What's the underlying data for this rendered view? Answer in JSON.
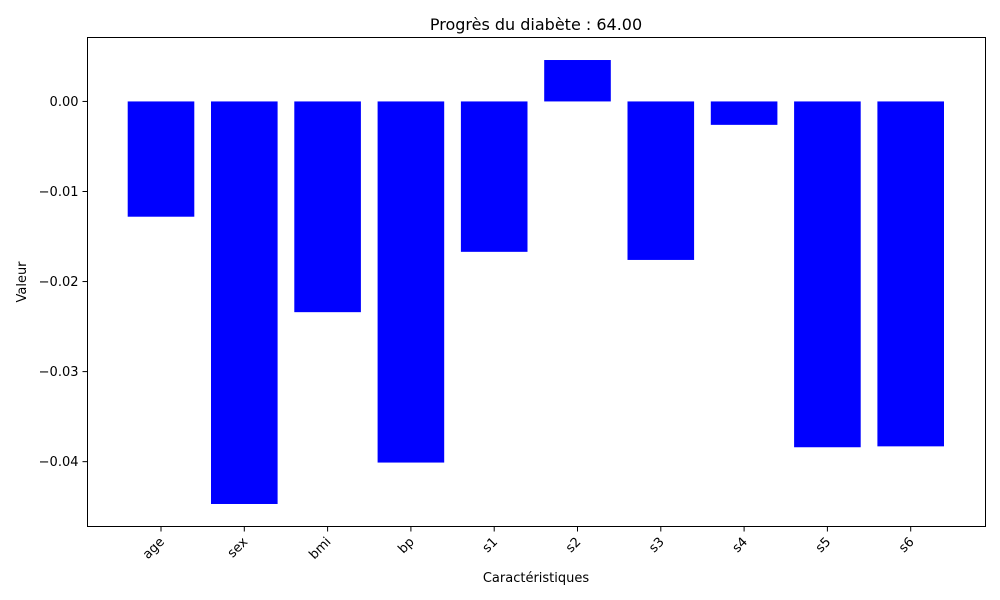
{
  "chart_data": {
    "type": "bar",
    "title": "Progrès du diabète : 64.00",
    "xlabel": "Caractéristiques",
    "ylabel": "Valeur",
    "categories": [
      "age",
      "sex",
      "bmi",
      "bp",
      "s1",
      "s2",
      "s3",
      "s4",
      "s5",
      "s6"
    ],
    "values": [
      -0.0128,
      -0.0447,
      -0.0234,
      -0.0401,
      -0.0167,
      0.0046,
      -0.0176,
      -0.0026,
      -0.0384,
      -0.0383
    ],
    "ylim": [
      -0.0472,
      0.0071
    ],
    "yticks": [
      0.0,
      -0.01,
      -0.02,
      -0.03,
      -0.04
    ],
    "ytick_labels": [
      "0.00",
      "−0.01",
      "−0.02",
      "−0.03",
      "−0.04"
    ],
    "bar_color": "#0000ff",
    "grid": false,
    "legend": "none"
  }
}
